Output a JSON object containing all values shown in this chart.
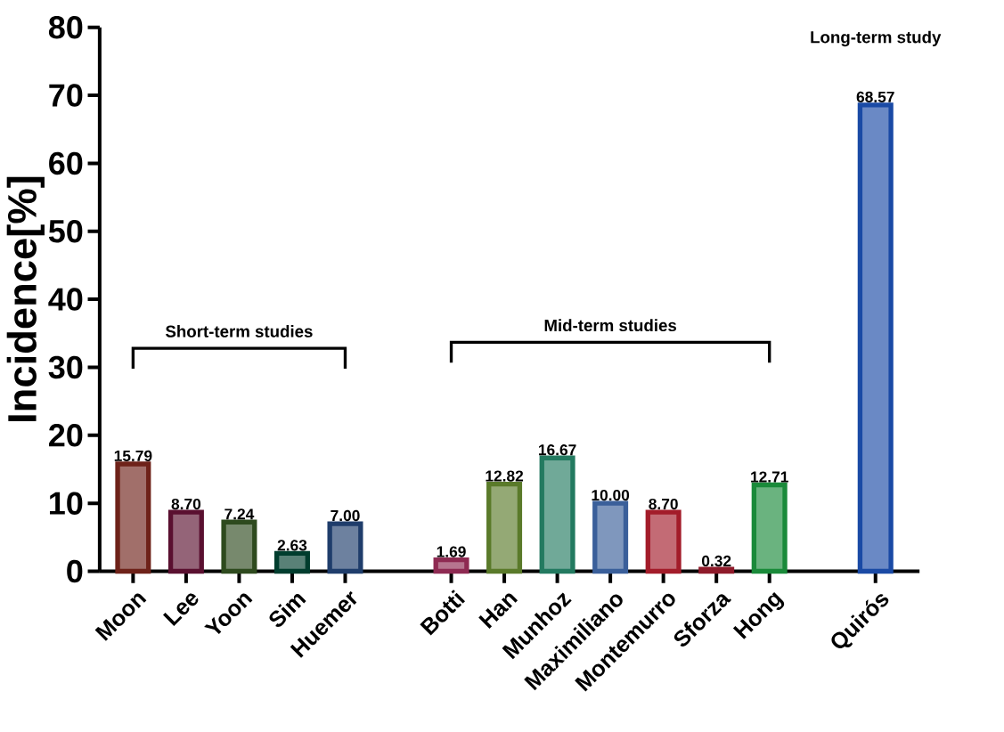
{
  "chart_data": {
    "type": "bar",
    "ylabel": "Incidence[%]",
    "categories": [
      "Moon",
      "Lee",
      "Yoon",
      "Sim",
      "Huemer",
      null,
      "Botti",
      "Han",
      "Munhoz",
      "Maximiliano",
      "Montemurro",
      "Sforza",
      "Hong",
      null,
      "Quirós"
    ],
    "values": [
      15.79,
      8.7,
      7.24,
      2.63,
      7.0,
      null,
      1.69,
      12.82,
      16.67,
      10.0,
      8.7,
      0.32,
      12.71,
      null,
      68.57
    ],
    "value_labels": [
      "15.79",
      "8.70",
      "7.24",
      "2.63",
      "7.00",
      null,
      "1.69",
      "12.82",
      "16.67",
      "10.00",
      "8.70",
      "0.32",
      "12.71",
      null,
      "68.57"
    ],
    "colors": [
      "#6e2219",
      "#5a1030",
      "#2e4a1e",
      "#003d2e",
      "#1f3d6b",
      null,
      "#8e2a52",
      "#5a7a2a",
      "#237a60",
      "#3a5f9a",
      "#a31c2a",
      "#8e1a2a",
      "#1a8a3a",
      null,
      "#1a4aa5"
    ],
    "ylim": [
      0,
      80
    ],
    "yticks": [
      0,
      10,
      20,
      30,
      40,
      50,
      60,
      70,
      80
    ],
    "annotations": [
      "Short-term studies",
      "Mid-term studies",
      "Long-term study"
    ],
    "grid": false
  }
}
